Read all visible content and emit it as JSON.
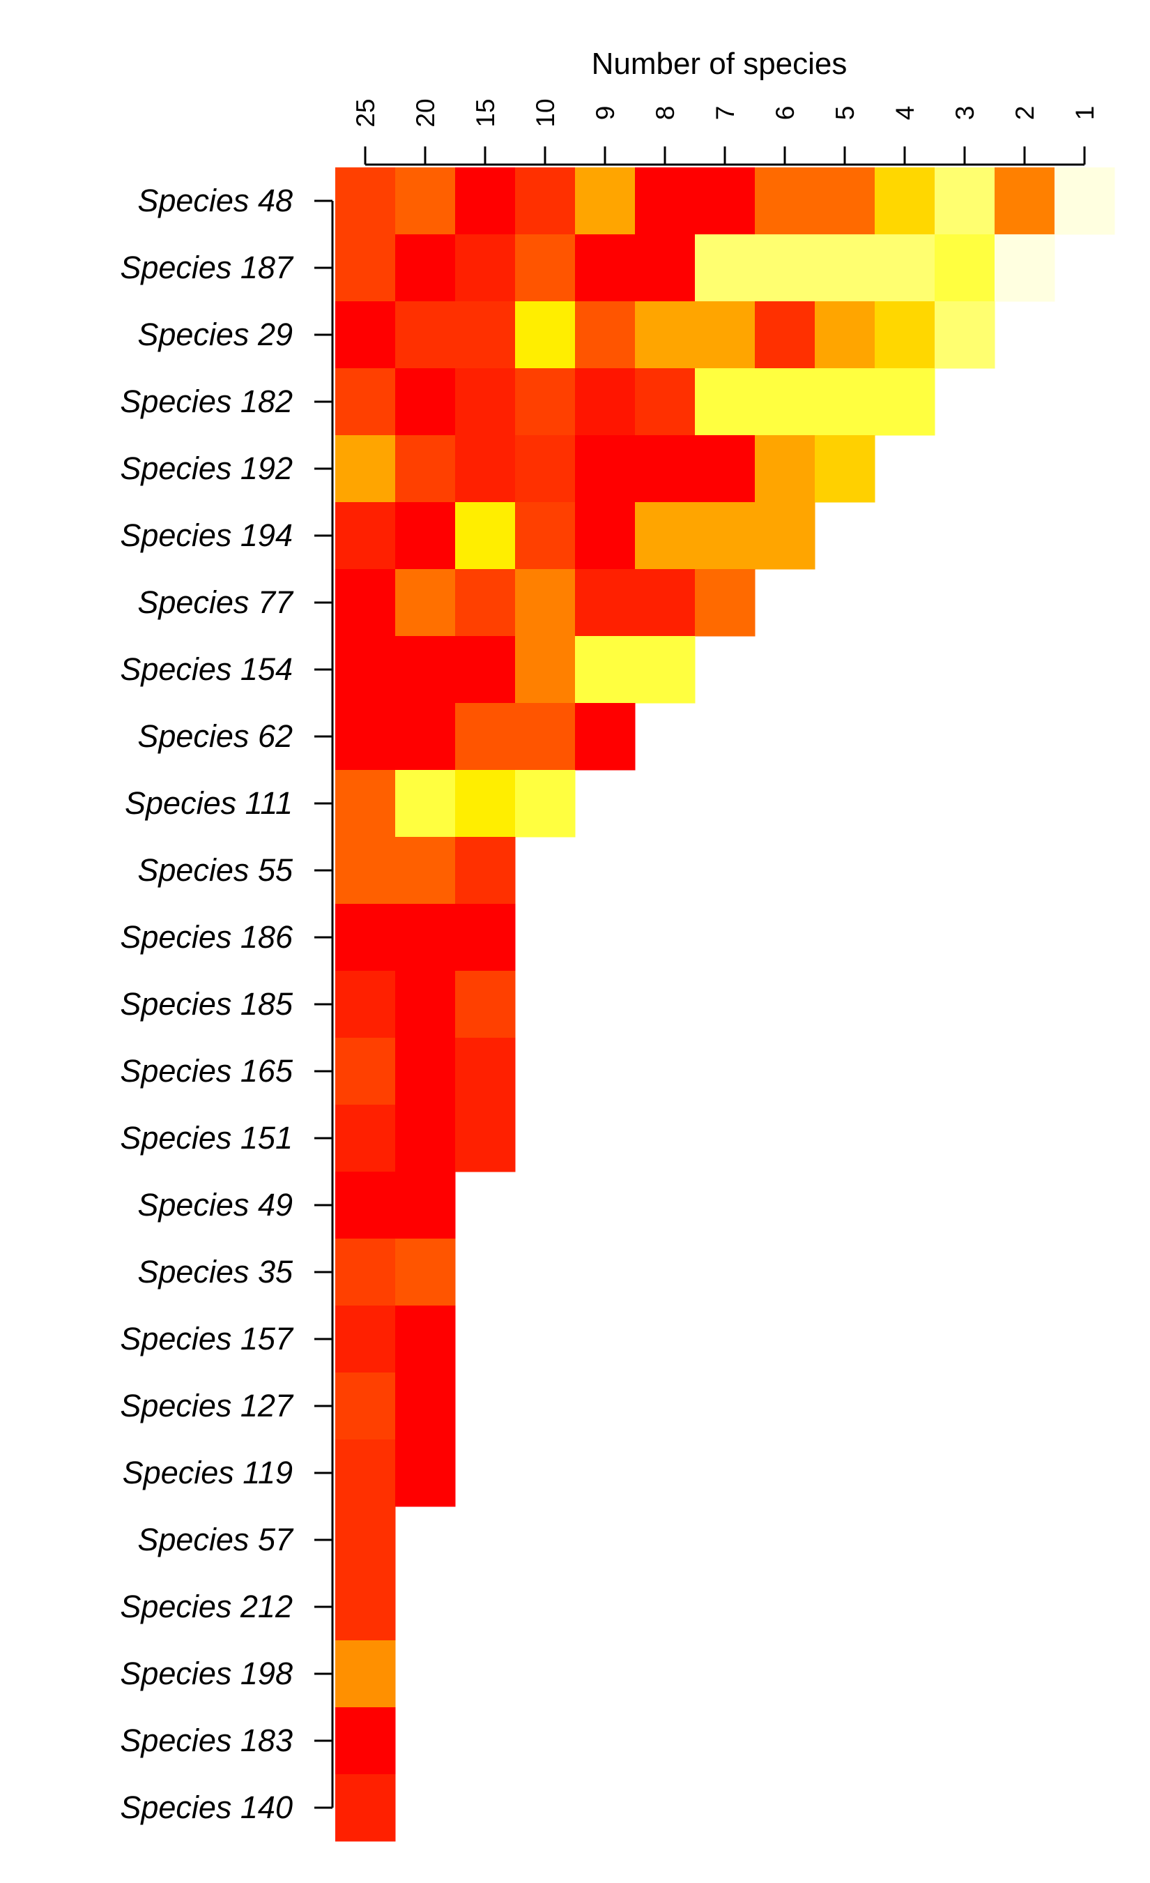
{
  "chart_data": {
    "type": "heatmap",
    "title": "",
    "xlabel": "Number of species",
    "ylabel": "",
    "x_position": "top",
    "colormap": "heat (red-orange-yellow-white)",
    "columns": [
      "25",
      "20",
      "15",
      "10",
      "9",
      "8",
      "7",
      "6",
      "5",
      "4",
      "3",
      "2",
      "1"
    ],
    "rows": [
      "Species 48",
      "Species 187",
      "Species 29",
      "Species 182",
      "Species 192",
      "Species 194",
      "Species 77",
      "Species 154",
      "Species 62",
      "Species 111",
      "Species 55",
      "Species 186",
      "Species 185",
      "Species 165",
      "Species 151",
      "Species 49",
      "Species 35",
      "Species 157",
      "Species 127",
      "Species 119",
      "Species 57",
      "Species 212",
      "Species 198",
      "Species 183",
      "Species 140"
    ],
    "cell_colors": [
      [
        "#FF4000",
        "#FF6000",
        "#FF0000",
        "#FF3000",
        "#FFA500",
        "#FF0000",
        "#FF0000",
        "#FF6A00",
        "#FF6A00",
        "#FFD700",
        "#FFFF70",
        "#FF8000",
        "#FFFFE0"
      ],
      [
        "#FF4000",
        "#FF0000",
        "#FF2000",
        "#FF5500",
        "#FF0000",
        "#FF0000",
        "#FFFF70",
        "#FFFF70",
        "#FFFF70",
        "#FFFF70",
        "#FFFF40",
        "#FFFFE0"
      ],
      [
        "#FF0000",
        "#FF3000",
        "#FF3000",
        "#FFEE00",
        "#FF5500",
        "#FFA500",
        "#FFA500",
        "#FF3000",
        "#FFA500",
        "#FFD700",
        "#FFFF70"
      ],
      [
        "#FF4000",
        "#FF0000",
        "#FF2000",
        "#FF4000",
        "#FF1500",
        "#FF3000",
        "#FFFF40",
        "#FFFF40",
        "#FFFF40",
        "#FFFF40"
      ],
      [
        "#FFA500",
        "#FF4000",
        "#FF2000",
        "#FF3000",
        "#FF0000",
        "#FF0000",
        "#FF0000",
        "#FFA500",
        "#FFD000"
      ],
      [
        "#FF2000",
        "#FF0000",
        "#FFEE00",
        "#FF4000",
        "#FF0000",
        "#FFA500",
        "#FFA500",
        "#FFA500"
      ],
      [
        "#FF0000",
        "#FF7000",
        "#FF4000",
        "#FF8000",
        "#FF2000",
        "#FF2000",
        "#FF6A00"
      ],
      [
        "#FF0000",
        "#FF0000",
        "#FF0000",
        "#FF8000",
        "#FFFF40",
        "#FFFF40"
      ],
      [
        "#FF0000",
        "#FF0000",
        "#FF5500",
        "#FF5500",
        "#FF0000"
      ],
      [
        "#FF6000",
        "#FFFF40",
        "#FFEE00",
        "#FFFF40"
      ],
      [
        "#FF6000",
        "#FF6000",
        "#FF3000"
      ],
      [
        "#FF0000",
        "#FF0000",
        "#FF0000"
      ],
      [
        "#FF2000",
        "#FF0000",
        "#FF4000"
      ],
      [
        "#FF4000",
        "#FF0000",
        "#FF2000"
      ],
      [
        "#FF2000",
        "#FF0000",
        "#FF2000"
      ],
      [
        "#FF0000",
        "#FF0000"
      ],
      [
        "#FF4000",
        "#FF5500"
      ],
      [
        "#FF2000",
        "#FF0000"
      ],
      [
        "#FF4000",
        "#FF0000"
      ],
      [
        "#FF3000",
        "#FF0000"
      ],
      [
        "#FF3000"
      ],
      [
        "#FF3000"
      ],
      [
        "#FF9000"
      ],
      [
        "#FF0000"
      ],
      [
        "#FF2000"
      ]
    ],
    "legend": "none",
    "grid": false
  }
}
